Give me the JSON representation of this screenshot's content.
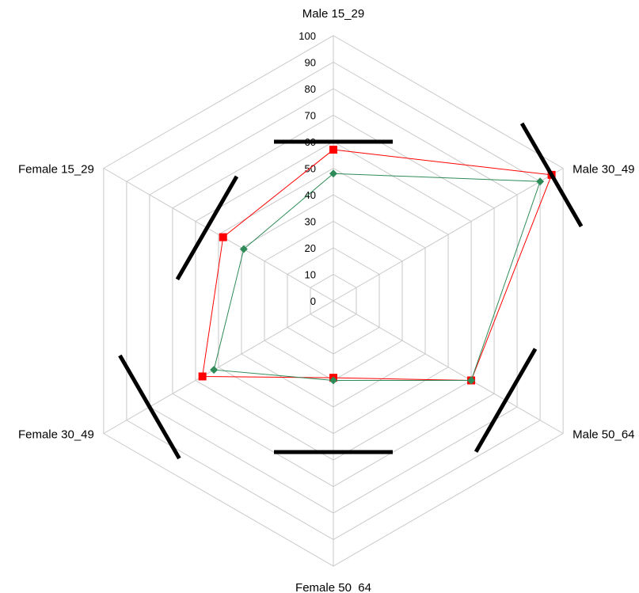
{
  "chart_data": {
    "type": "radar",
    "categories": [
      "Male 15_29",
      "Male 30_49",
      "Male 50_64",
      "Female 50_64",
      "Female 30_49",
      "Female 15_29"
    ],
    "rlim": [
      0,
      100
    ],
    "ticks": [
      "0",
      "10",
      "20",
      "30",
      "40",
      "50",
      "60",
      "70",
      "80",
      "90",
      "100"
    ],
    "grid": true,
    "legend": "none",
    "series": [
      {
        "values": [
          57,
          95,
          60,
          29,
          57,
          48
        ],
        "color": "#ff0000",
        "marker": "square"
      },
      {
        "values": [
          48,
          90,
          60,
          30,
          52,
          39
        ],
        "color": "#2e8b57",
        "marker": "diamond"
      }
    ],
    "annotations": [
      {
        "type": "bar",
        "category": "Male 15_29",
        "value": 60
      },
      {
        "type": "bar",
        "category": "Male 30_49",
        "value": 95
      },
      {
        "type": "bar",
        "category": "Male 50_64",
        "value": 75
      },
      {
        "type": "bar",
        "category": "Female 50_64",
        "value": 57
      },
      {
        "type": "bar",
        "category": "Female 30_49",
        "value": 80
      },
      {
        "type": "bar",
        "category": "Female 15_29",
        "value": 55
      }
    ]
  }
}
